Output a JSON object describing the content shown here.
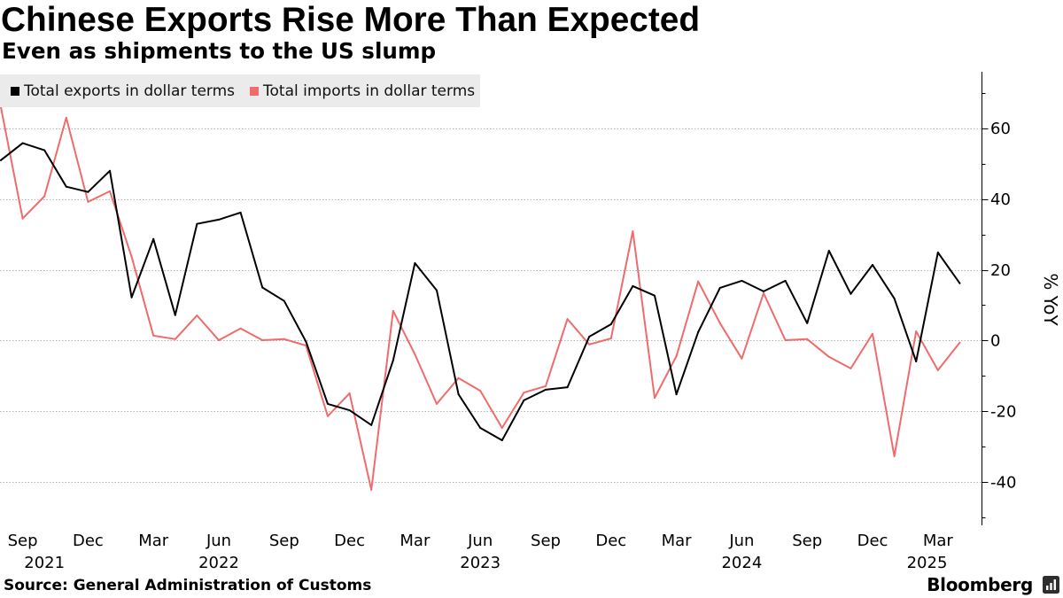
{
  "chart_data": {
    "type": "line",
    "title": "Chinese Exports Rise More Than Expected",
    "subtitle": "Even as shipments to the US slump",
    "xlabel": "",
    "ylabel": "% YoY",
    "ylim": [
      -52,
      76
    ],
    "y_ticks": [
      60,
      40,
      20,
      0,
      -20,
      -40
    ],
    "y_axis_position": "right",
    "grid": true,
    "legend_position": "top-left",
    "x": [
      "2021-08",
      "2021-09",
      "2021-10",
      "2021-11",
      "2021-12",
      "2022-01",
      "2022-02",
      "2022-03",
      "2022-04",
      "2022-05",
      "2022-06",
      "2022-07",
      "2022-08",
      "2022-09",
      "2022-10",
      "2022-11",
      "2022-12",
      "2023-01",
      "2023-02",
      "2023-03",
      "2023-04",
      "2023-05",
      "2023-06",
      "2023-07",
      "2023-08",
      "2023-09",
      "2023-10",
      "2023-11",
      "2023-12",
      "2024-01",
      "2024-02",
      "2024-03",
      "2024-04",
      "2024-05",
      "2024-06",
      "2024-07",
      "2024-08",
      "2024-09",
      "2024-10",
      "2024-11",
      "2024-12",
      "2025-01",
      "2025-02",
      "2025-03",
      "2025-04"
    ],
    "x_ticks": [
      {
        "label": "Sep",
        "date": "2021-09"
      },
      {
        "label": "Dec",
        "date": "2021-12"
      },
      {
        "label": "Mar",
        "date": "2022-03"
      },
      {
        "label": "Jun",
        "date": "2022-06"
      },
      {
        "label": "Sep",
        "date": "2022-09"
      },
      {
        "label": "Dec",
        "date": "2022-12"
      },
      {
        "label": "Mar",
        "date": "2023-03"
      },
      {
        "label": "Jun",
        "date": "2023-06"
      },
      {
        "label": "Sep",
        "date": "2023-09"
      },
      {
        "label": "Dec",
        "date": "2023-12"
      },
      {
        "label": "Mar",
        "date": "2024-03"
      },
      {
        "label": "Jun",
        "date": "2024-06"
      },
      {
        "label": "Sep",
        "date": "2024-09"
      },
      {
        "label": "Dec",
        "date": "2024-12"
      },
      {
        "label": "Mar",
        "date": "2025-03"
      }
    ],
    "x_year_labels": [
      "2021",
      "2022",
      "2023",
      "2024",
      "2025"
    ],
    "series": [
      {
        "name": "Total exports in dollar terms",
        "color": "#000000",
        "values": [
          51.0,
          55.8,
          53.8,
          43.5,
          42.0,
          48.0,
          12.2,
          28.7,
          7.2,
          33.0,
          34.2,
          36.2,
          15.0,
          11.2,
          -0.3,
          -17.9,
          -19.7,
          -23.9,
          -5.6,
          21.9,
          14.2,
          -15.2,
          -24.7,
          -28.2,
          -16.9,
          -13.9,
          -13.2,
          1.1,
          4.6,
          15.4,
          12.7,
          -15.2,
          2.4,
          14.9,
          16.9,
          13.9,
          16.9,
          4.9,
          25.4,
          13.2,
          21.4,
          11.9,
          -5.9,
          24.9,
          16.2
        ]
      },
      {
        "name": "Total imports in dollar terms",
        "color": "#f06b6b",
        "values": [
          66.0,
          34.5,
          40.8,
          63.0,
          39.2,
          42.2,
          23.7,
          1.4,
          0.4,
          7.1,
          0.1,
          3.4,
          0.1,
          0.4,
          -1.4,
          -21.4,
          -14.9,
          -42.2,
          8.4,
          -3.9,
          -17.9,
          -10.6,
          -14.2,
          -24.7,
          -14.7,
          -12.9,
          6.1,
          -1.1,
          0.6,
          30.9,
          -16.2,
          -4.4,
          16.7,
          4.9,
          -5.1,
          13.4,
          0.1,
          0.4,
          -4.6,
          -7.9,
          1.9,
          -32.7,
          2.6,
          -8.4,
          -0.6
        ]
      }
    ],
    "source": "Source: General Administration of Customs"
  },
  "branding": {
    "logo_text": "Bloomberg",
    "logo_icon": "bloomberg-logo-icon"
  }
}
